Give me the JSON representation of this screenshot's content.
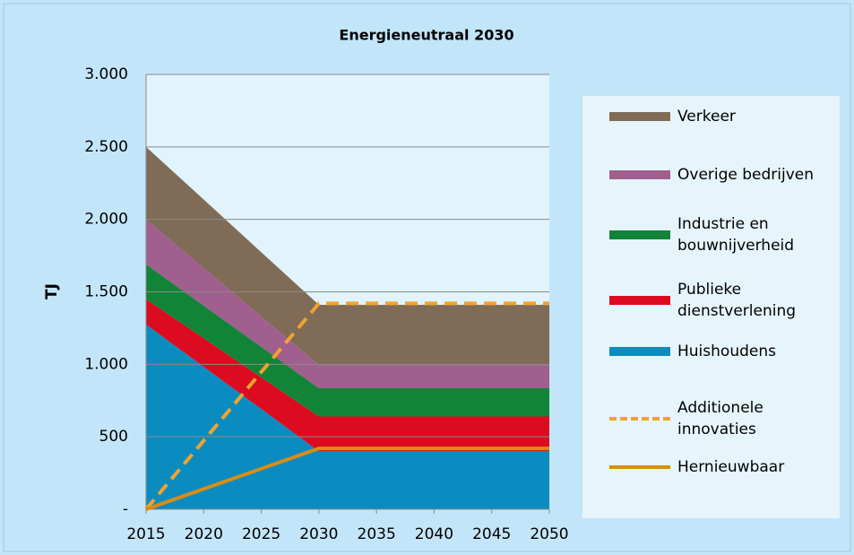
{
  "chart_data": {
    "type": "stacked-area-line",
    "title": "Energieneutraal 2030",
    "ylabel": "TJ",
    "x": [
      2015,
      2020,
      2025,
      2030,
      2035,
      2040,
      2045,
      2050
    ],
    "xlim": [
      2015,
      2050
    ],
    "xticks": [
      2015,
      2020,
      2025,
      2030,
      2035,
      2040,
      2045,
      2050
    ],
    "ylim": [
      0,
      3000
    ],
    "yticks": [
      {
        "value": 0,
        "label": "-"
      },
      500,
      {
        "value": 1000,
        "label": "1.000"
      },
      {
        "value": 1500,
        "label": "1.500"
      },
      {
        "value": 2000,
        "label": "2.000"
      },
      {
        "value": 2500,
        "label": "2.500"
      },
      {
        "value": 3000,
        "label": "3.000"
      }
    ],
    "grid": true,
    "series": [
      {
        "name": "Verkeer",
        "kind": "area",
        "color": "#7f6b56",
        "values": [
          500,
          472,
          443,
          415,
          415,
          415,
          415,
          415
        ]
      },
      {
        "name": "Overige bedrijven",
        "kind": "area",
        "color": "#a05f8e",
        "values": [
          310,
          260,
          210,
          160,
          160,
          160,
          160,
          160
        ]
      },
      {
        "name": "Industrie en bouwnijverheid",
        "kind": "area",
        "color": "#128437",
        "values": [
          240,
          225,
          210,
          195,
          195,
          195,
          195,
          195
        ]
      },
      {
        "name": "Publieke dienstverlening",
        "kind": "area",
        "color": "#dc0b1f",
        "values": [
          175,
          197,
          218,
          240,
          240,
          240,
          240,
          240
        ]
      },
      {
        "name": "Huishoudens",
        "kind": "area",
        "color": "#0b8cc0",
        "values": [
          1275,
          983,
          692,
          400,
          400,
          400,
          400,
          400
        ]
      },
      {
        "name": "Additionele innovaties",
        "kind": "line",
        "dash": true,
        "color": "#f2a230",
        "values": [
          0,
          473,
          947,
          1420,
          1420,
          1420,
          1420,
          1420
        ]
      },
      {
        "name": "Hernieuwbaar",
        "kind": "line",
        "dash": false,
        "color": "#d98c14",
        "values": [
          0,
          140,
          280,
          420,
          420,
          420,
          420,
          420
        ]
      }
    ]
  }
}
